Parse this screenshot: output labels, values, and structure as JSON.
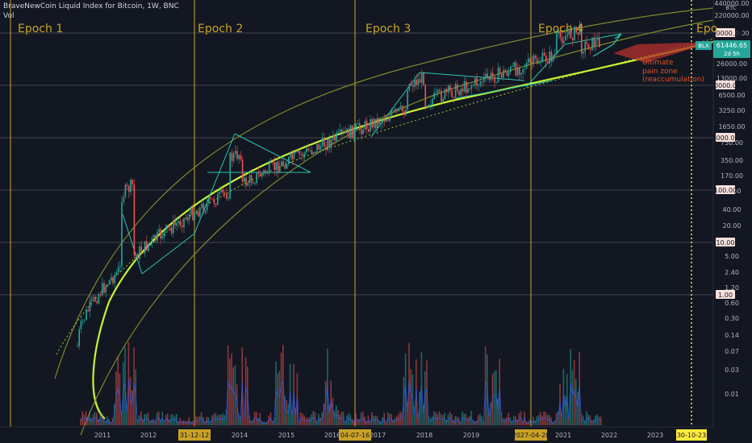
{
  "header": {
    "symbol": "BraveNewCoin Liquid Index for Bitcoin, 1W, BNC",
    "volume_label": "Vol"
  },
  "chart_data": {
    "type": "candlestick",
    "scale": "log",
    "price_axis_ticks": [
      "440000.00",
      "220000.00",
      "100000.00",
      "26000.00",
      "13000.00",
      "6500.00",
      "3250.00",
      "1650.00",
      "750.00",
      "350.00",
      "170.00",
      "80.00",
      "40.00",
      "20.00",
      "5.00",
      "2.40",
      "1.20",
      "0.60",
      "0.30",
      "0.14",
      "0.07",
      "0.03",
      "0.01"
    ],
    "price_axis_currency": "BTC",
    "highlighted_levels": [
      "100000.00",
      "10000.00",
      "1000.00",
      "100.00",
      "10.00",
      "1.00"
    ],
    "current_price": {
      "label": "BLX",
      "value": "61446.65",
      "countdown": "2d 5h"
    },
    "time_axis_labels": [
      "2011",
      "2012",
      "2014",
      "2015",
      "2016",
      "2017",
      "2018",
      "2019",
      "2021",
      "2022",
      "2023"
    ],
    "epoch_dates": [
      "31-12-12",
      "04-07-16",
      "2027-04-20"
    ],
    "projection_date": "30-10-23",
    "epochs": [
      "Epoch 1",
      "Epoch 2",
      "Epoch 3",
      "Epoch 4",
      "Epo"
    ],
    "annotation": {
      "title": "Ultimate",
      "line2": "pain zone",
      "line3": "(reaccumulation)"
    },
    "colors": {
      "background": "#131722",
      "epoch_line": "#c9a227",
      "epoch_text": "#c9a227",
      "support_curve": "#c6f432",
      "channel_curve": "#7d8a2a",
      "trend_lines": "#26c6b0",
      "candle_up": "#26a69a",
      "candle_down": "#ef5350",
      "volume_line": "#2962ff",
      "pain_zone": "#b5302e",
      "annotation_text": "#e0522b",
      "projection_line": "#ffeb3b"
    }
  }
}
